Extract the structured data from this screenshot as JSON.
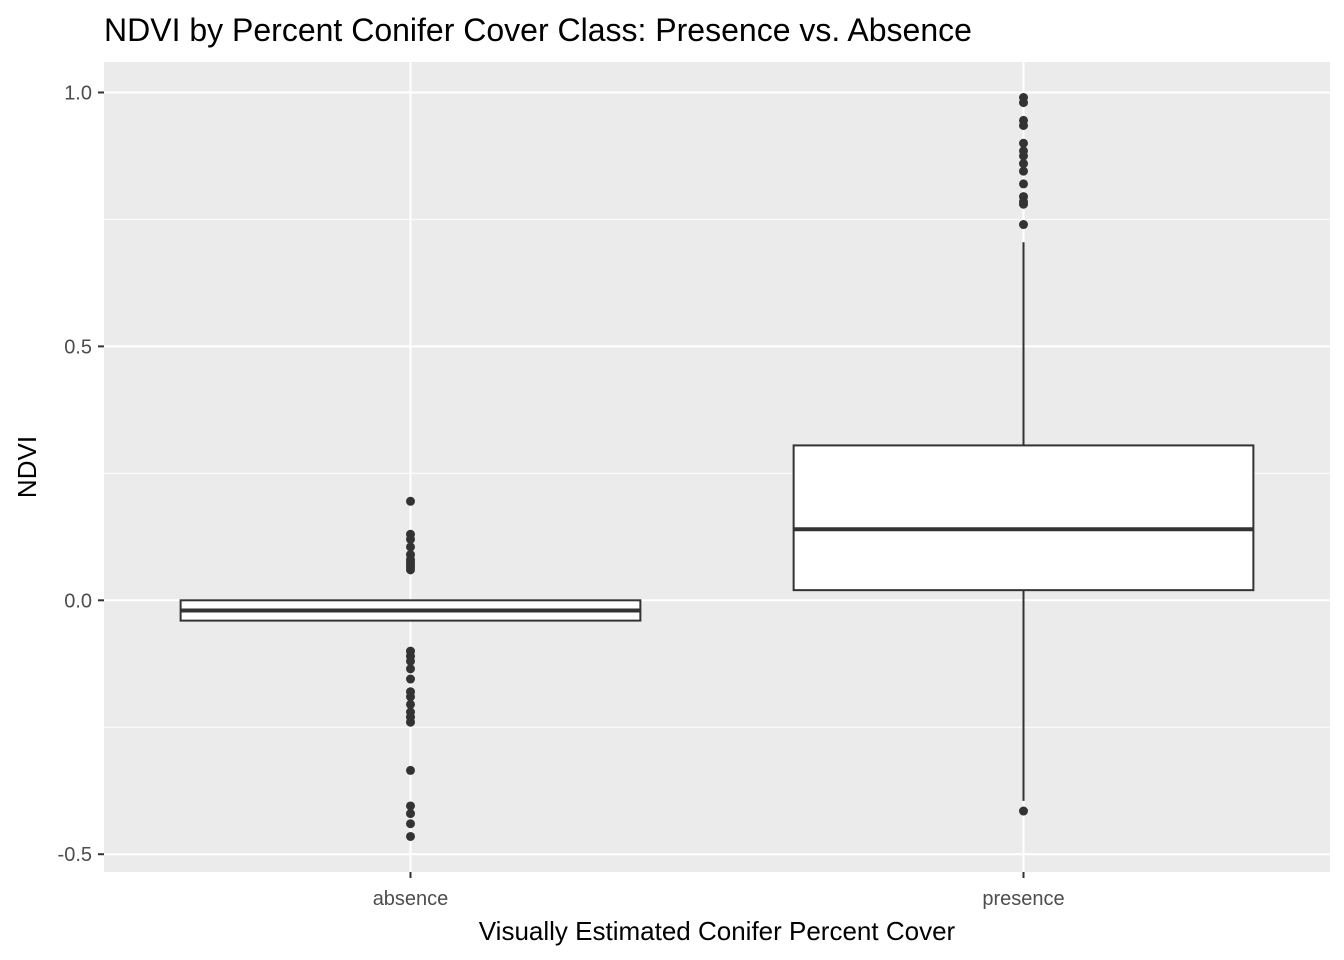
{
  "chart_data": {
    "type": "boxplot",
    "title": "NDVI by Percent Conifer Cover Class: Presence vs. Absence",
    "xlabel": "Visually Estimated Conifer Percent Cover",
    "ylabel": "NDVI",
    "categories": [
      "absence",
      "presence"
    ],
    "ylim": [
      -0.535,
      1.06
    ],
    "y_ticks": [
      {
        "value": -0.5,
        "label": "-0.5"
      },
      {
        "value": 0.0,
        "label": "0.0"
      },
      {
        "value": 0.5,
        "label": "0.5"
      },
      {
        "value": 1.0,
        "label": "1.0"
      }
    ],
    "y_minor_ticks": [
      -0.25,
      0.25,
      0.75
    ],
    "grid": true,
    "boxes": [
      {
        "category": "absence",
        "whisker_low": -0.04,
        "q1": -0.04,
        "median": -0.02,
        "q3": 0.0,
        "whisker_high": 0.0,
        "outliers": [
          0.195,
          0.13,
          0.12,
          0.105,
          0.09,
          0.08,
          0.075,
          0.07,
          0.065,
          0.06,
          -0.1,
          -0.11,
          -0.12,
          -0.135,
          -0.155,
          -0.18,
          -0.19,
          -0.205,
          -0.22,
          -0.23,
          -0.24,
          -0.335,
          -0.405,
          -0.42,
          -0.44,
          -0.465
        ]
      },
      {
        "category": "presence",
        "whisker_low": -0.395,
        "q1": 0.02,
        "median": 0.14,
        "q3": 0.305,
        "whisker_high": 0.705,
        "outliers": [
          0.99,
          0.98,
          0.945,
          0.935,
          0.9,
          0.885,
          0.875,
          0.86,
          0.845,
          0.82,
          0.795,
          0.785,
          0.78,
          0.74,
          -0.415
        ]
      }
    ]
  }
}
